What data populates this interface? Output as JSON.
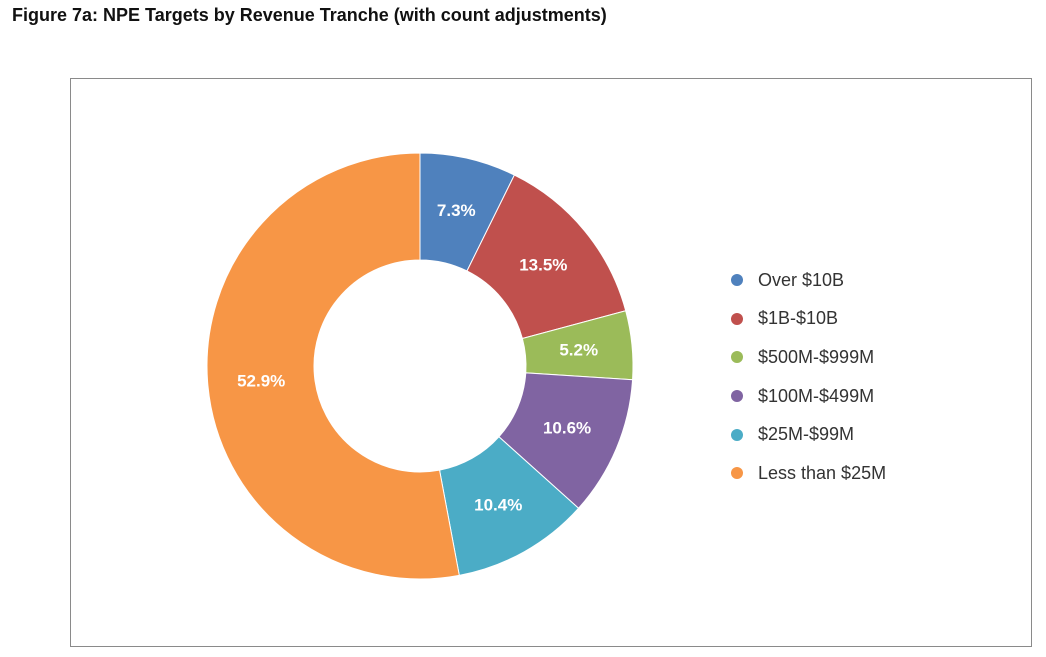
{
  "figure": {
    "title": "Figure 7a: NPE Targets by Revenue Tranche (with count adjustments)"
  },
  "chart_data": {
    "type": "pie",
    "variant": "donut",
    "title": "Figure 7a: NPE Targets by Revenue Tranche (with count adjustments)",
    "unit": "%",
    "legend_position": "right",
    "categories": [
      "Over $10B",
      "$1B-$10B",
      "$500M-$999M",
      "$100M-$499M",
      "$25M-$99M",
      "Less than $25M"
    ],
    "values": [
      7.3,
      13.5,
      5.2,
      10.6,
      10.4,
      52.9
    ],
    "labels": [
      "7.3%",
      "13.5%",
      "5.2%",
      "10.6%",
      "10.4%",
      "52.9%"
    ],
    "colors": [
      "#4f81bd",
      "#c0504d",
      "#9bbb59",
      "#8064a2",
      "#4bacc6",
      "#f79646"
    ]
  }
}
